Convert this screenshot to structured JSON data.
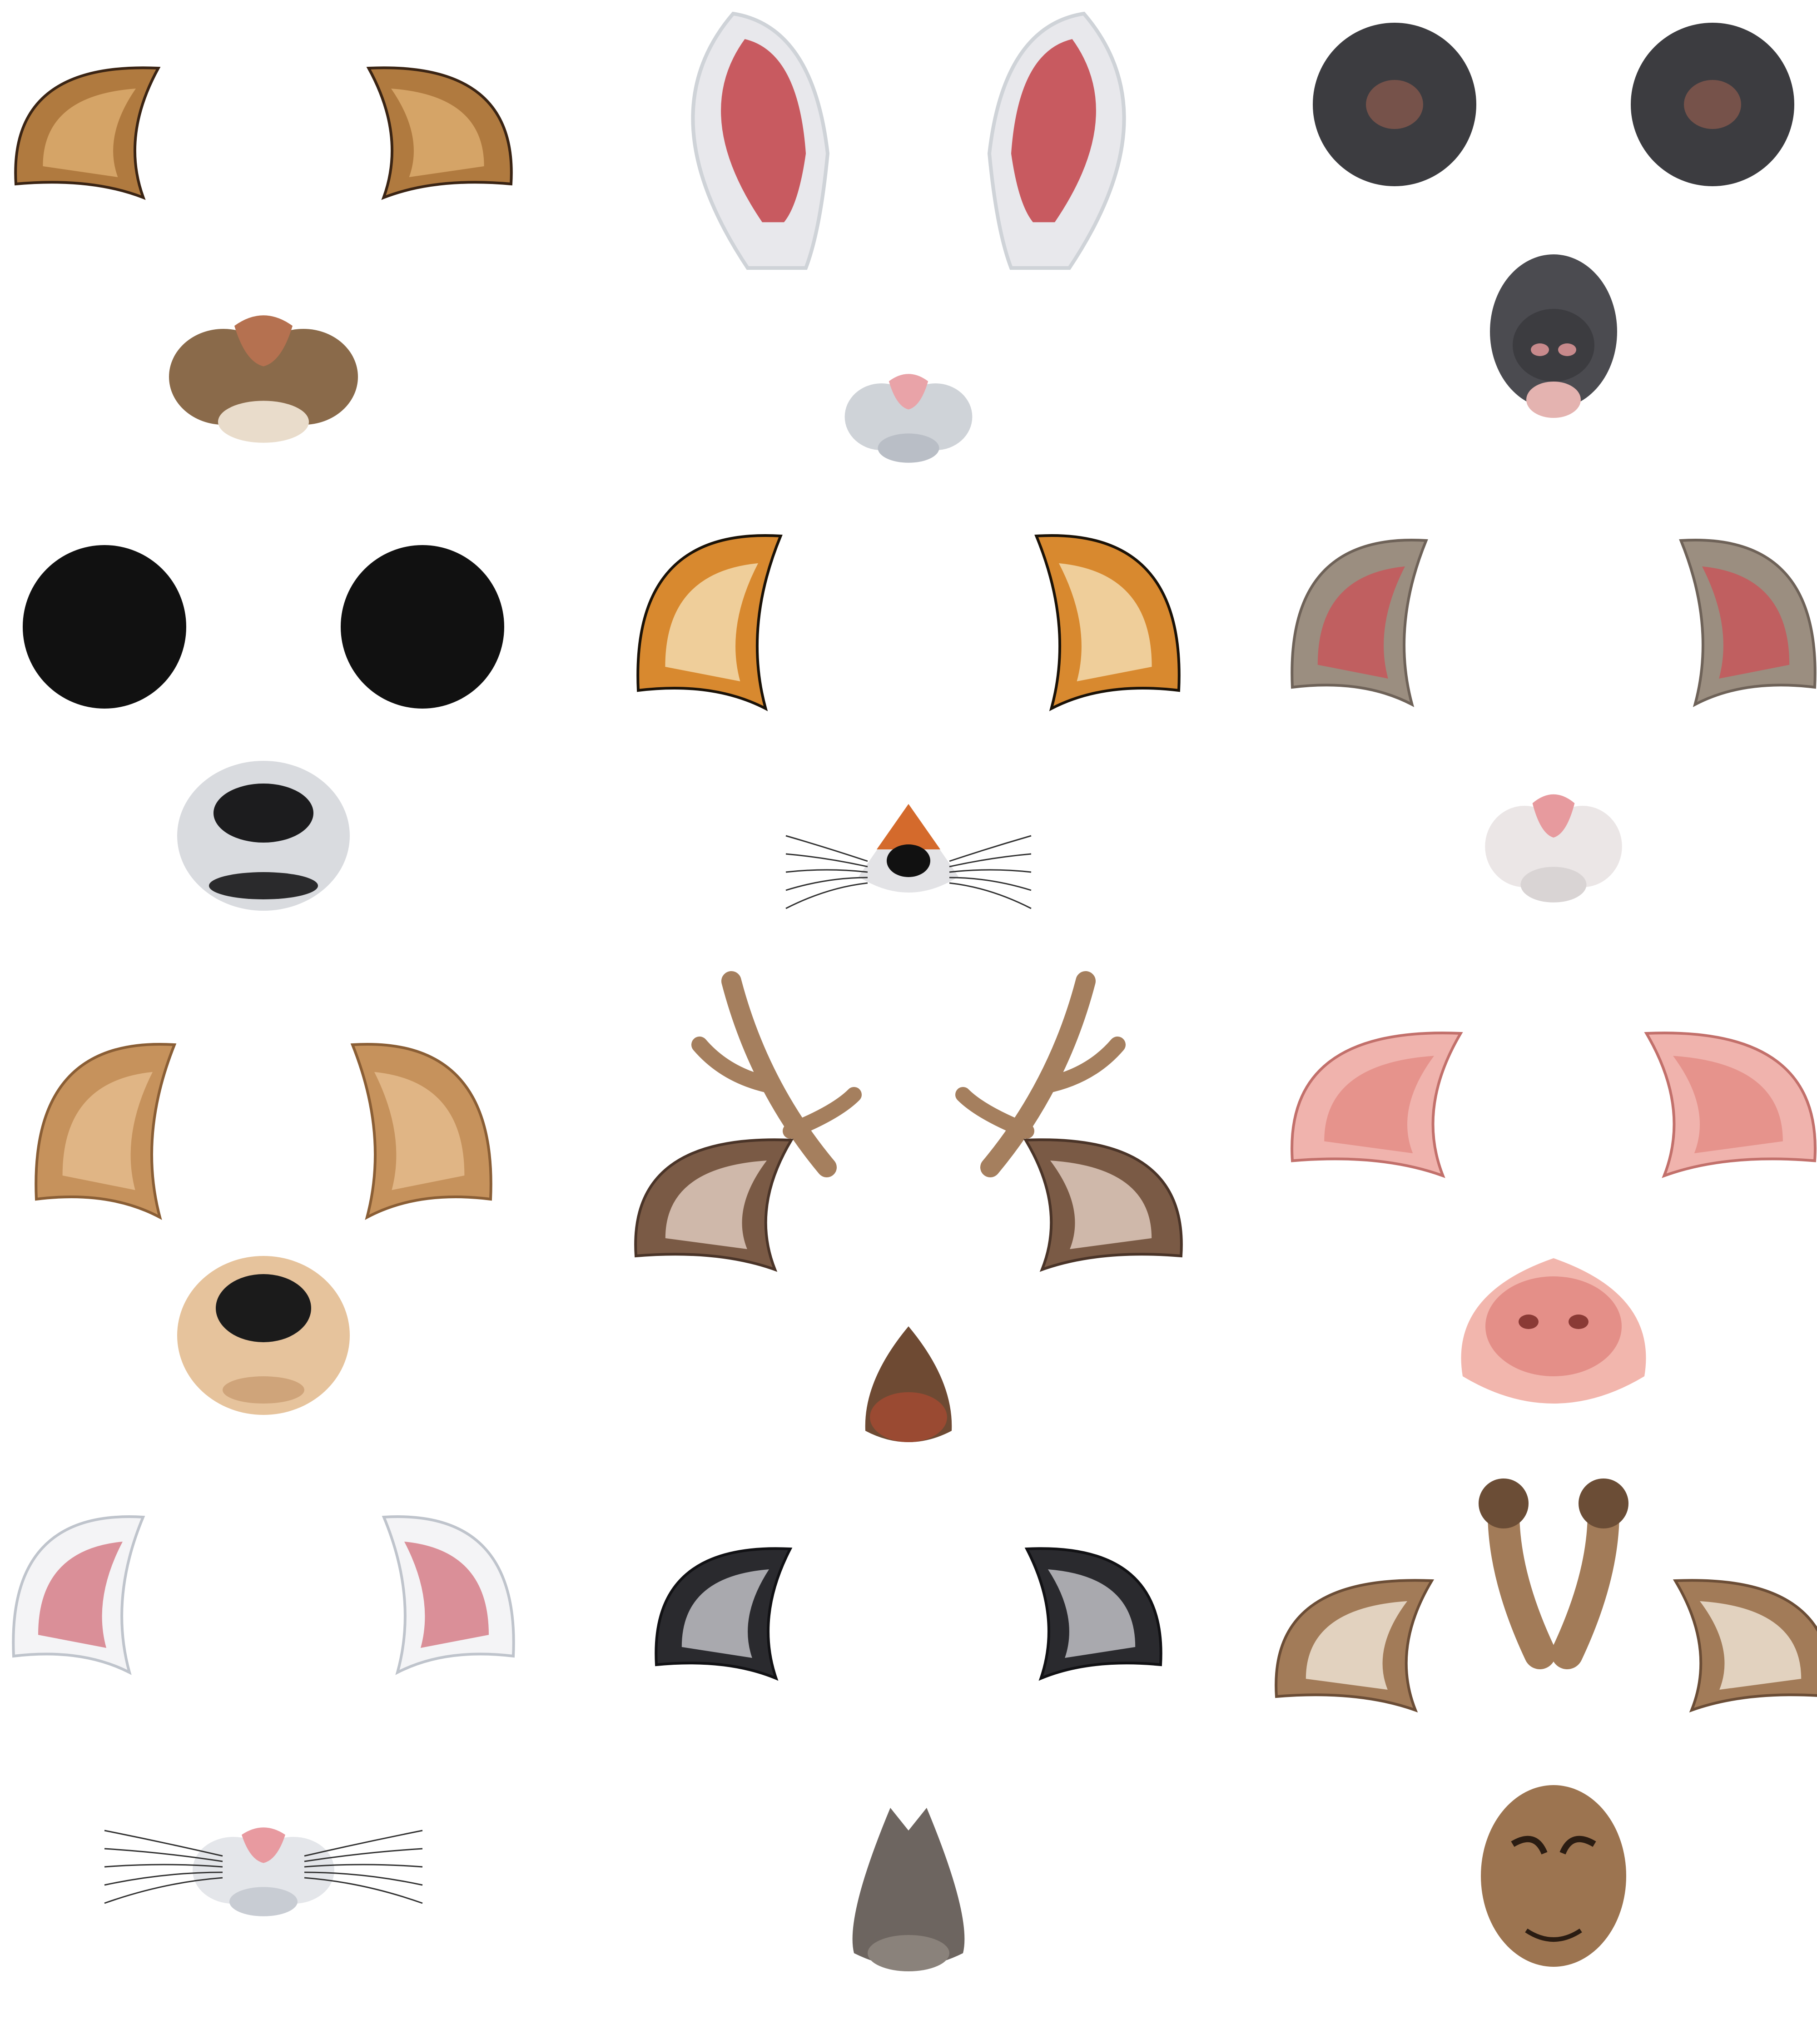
{
  "canvas": {
    "background": "#ffffff"
  },
  "sets": [
    {
      "id": "tiger",
      "ears": "pointed-fur-ears",
      "nose": "tiger-muzzle",
      "colors": {
        "fur": "#b07a3f",
        "dark": "#3a2414",
        "inner": "#d9a86c",
        "muzzle": "#8a6a4a",
        "nose": "#b57150",
        "chin": "#e9dccb"
      }
    },
    {
      "id": "rabbit",
      "ears": "long-ears",
      "nose": "rabbit-muzzle",
      "colors": {
        "fur": "#e8e8ec",
        "dark": "#9aa0a8",
        "inner": "#c85a60",
        "muzzle": "#cfd3d8",
        "nose": "#e9a3a8",
        "chin": "#b9bec6"
      }
    },
    {
      "id": "mouse",
      "ears": "round-fur-ears",
      "nose": "mouse-muzzle",
      "colors": {
        "fur": "#3c3c40",
        "dark": "#202024",
        "inner": "#8a5a4e",
        "muzzle": "#4b4b50",
        "nose": "#c88a8c",
        "chin": "#e4b3b0"
      }
    },
    {
      "id": "panda",
      "ears": "round-black-ears",
      "nose": "panda-muzzle",
      "colors": {
        "fur": "#111111",
        "dark": "#000000",
        "inner": "#222222",
        "muzzle": "#d9dbdf",
        "nose": "#1c1c1e",
        "chin": "#2a2a2c"
      }
    },
    {
      "id": "fox",
      "ears": "fox-ears",
      "nose": "fox-muzzle",
      "colors": {
        "fur": "#d8892f",
        "dark": "#1a1208",
        "inner": "#f2d6a6",
        "muzzle": "#e3e3e6",
        "nose": "#111111",
        "chin": "#d46a2c"
      }
    },
    {
      "id": "hamster",
      "ears": "pink-ears",
      "nose": "hamster-muzzle",
      "colors": {
        "fur": "#9b8e80",
        "dark": "#6e6258",
        "inner": "#c45a5c",
        "muzzle": "#ebe6e6",
        "nose": "#e79a9e",
        "chin": "#d9d4d4"
      }
    },
    {
      "id": "dog",
      "ears": "dog-ears",
      "nose": "dog-muzzle",
      "colors": {
        "fur": "#c6925c",
        "dark": "#8a5e35",
        "inner": "#e2b98a",
        "muzzle": "#e6c39c",
        "nose": "#1b1b1b",
        "chin": "#cfa47a"
      }
    },
    {
      "id": "deer",
      "ears": "antlers-and-ears",
      "nose": "deer-muzzle",
      "colors": {
        "fur": "#7a5a45",
        "dark": "#4a3428",
        "inner": "#d8c2b5",
        "muzzle": "#6e4a33",
        "nose": "#9a4a32",
        "chin": "#3a2a22"
      }
    },
    {
      "id": "pig",
      "ears": "pig-ears",
      "nose": "pig-snout",
      "colors": {
        "fur": "#f0b3ad",
        "dark": "#c2706b",
        "inner": "#e48f88",
        "muzzle": "#f2b6ad",
        "nose": "#8a3a35",
        "chin": "#e49c92"
      }
    },
    {
      "id": "cat",
      "ears": "cat-ears",
      "nose": "cat-muzzle",
      "colors": {
        "fur": "#f4f4f6",
        "dark": "#bfc4cc",
        "inner": "#d7848e",
        "muzzle": "#e4e6ea",
        "nose": "#e89aa0",
        "chin": "#c8ccd3"
      }
    },
    {
      "id": "donkey",
      "ears": "grey-ears",
      "nose": "donkey-muzzle",
      "colors": {
        "fur": "#2a2a2e",
        "dark": "#111114",
        "inner": "#b7b7bd",
        "muzzle": "#6d6560",
        "nose": "#2e2a28",
        "chin": "#8a827b"
      }
    },
    {
      "id": "giraffe",
      "ears": "giraffe-ears",
      "nose": "giraffe-muzzle",
      "colors": {
        "fur": "#a27b58",
        "dark": "#6b4d36",
        "inner": "#e9dccb",
        "muzzle": "#9c7450",
        "nose": "#2a1c12",
        "chin": "#b48a63"
      }
    }
  ]
}
